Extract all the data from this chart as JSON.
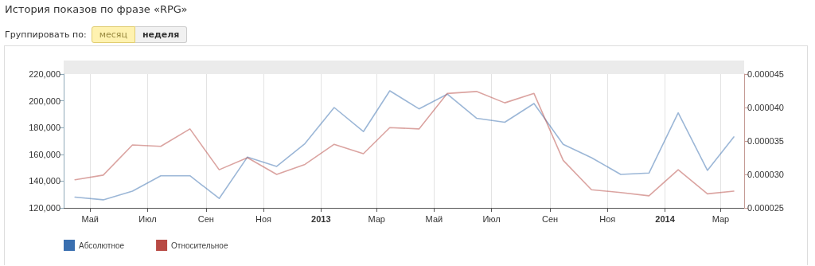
{
  "chart_data": {
    "type": "line",
    "title": "История показов по фразе «RPG»",
    "annotations": [
      "Группировать по:",
      "месяц",
      "неделя"
    ],
    "x": [
      "2012-04-15",
      "2012-05-15",
      "2012-06-15",
      "2012-07-15",
      "2012-08-15",
      "2012-09-15",
      "2012-10-15",
      "2012-11-15",
      "2012-12-15",
      "2013-01-15",
      "2013-02-15",
      "2013-03-15",
      "2013-04-15",
      "2013-05-15",
      "2013-06-15",
      "2013-07-15",
      "2013-08-15",
      "2013-09-15",
      "2013-10-15",
      "2013-11-15",
      "2013-12-15",
      "2014-01-15",
      "2014-02-15",
      "2014-03-15"
    ],
    "series": [
      {
        "name": "Абсолютное",
        "color": "#3a6fb0",
        "values": [
          128000,
          126000,
          132500,
          144000,
          144000,
          127000,
          158000,
          151000,
          168000,
          195000,
          177000,
          207500,
          194000,
          205000,
          187000,
          184000,
          198000,
          167500,
          157500,
          145000,
          146000,
          191000,
          148000,
          173000
        ]
      },
      {
        "name": "Относительное",
        "color": "#b84a44",
        "axis": "y2",
        "values": [
          2.92e-05,
          2.99e-05,
          3.44e-05,
          3.42e-05,
          3.68e-05,
          3.07e-05,
          3.25e-05,
          3e-05,
          3.15e-05,
          3.45e-05,
          3.31e-05,
          3.7e-05,
          3.68e-05,
          4.21e-05,
          4.24e-05,
          4.07e-05,
          4.21e-05,
          3.21e-05,
          2.77e-05,
          2.73e-05,
          2.68e-05,
          3.07e-05,
          2.71e-05,
          2.75e-05
        ]
      }
    ],
    "xlim": [
      "2012-04-03",
      "2014-03-26"
    ],
    "xticks": [
      {
        "value": "2012-05-01",
        "label": "Май"
      },
      {
        "value": "2012-07-01",
        "label": "Июл"
      },
      {
        "value": "2012-09-01",
        "label": "Сен"
      },
      {
        "value": "2012-11-01",
        "label": "Ноя"
      },
      {
        "value": "2013-01-01",
        "label": "2013"
      },
      {
        "value": "2013-03-01",
        "label": "Мар"
      },
      {
        "value": "2013-05-01",
        "label": "Май"
      },
      {
        "value": "2013-07-01",
        "label": "Июл"
      },
      {
        "value": "2013-09-01",
        "label": "Сен"
      },
      {
        "value": "2013-11-01",
        "label": "Ноя"
      },
      {
        "value": "2014-01-01",
        "label": "2014"
      },
      {
        "value": "2014-03-01",
        "label": "Мар"
      }
    ],
    "ylim": [
      120000,
      220000
    ],
    "yticks": [
      {
        "value": 120000,
        "label": "120,000"
      },
      {
        "value": 140000,
        "label": "140,000"
      },
      {
        "value": 160000,
        "label": "160,000"
      },
      {
        "value": 180000,
        "label": "180,000"
      },
      {
        "value": 200000,
        "label": "200,000"
      },
      {
        "value": 220000,
        "label": "220,000"
      }
    ],
    "y2lim": [
      2.5e-05,
      4.5e-05
    ],
    "y2ticks": [
      {
        "value": 2.5e-05,
        "label": "0.000025"
      },
      {
        "value": 3e-05,
        "label": "0.000030"
      },
      {
        "value": 3.5e-05,
        "label": "0.000035"
      },
      {
        "value": 4e-05,
        "label": "0.000040"
      },
      {
        "value": 4.5e-05,
        "label": "0.000045"
      }
    ],
    "grid": "x",
    "legend": "bottom left",
    "marker": "none",
    "line_style": "solid"
  }
}
